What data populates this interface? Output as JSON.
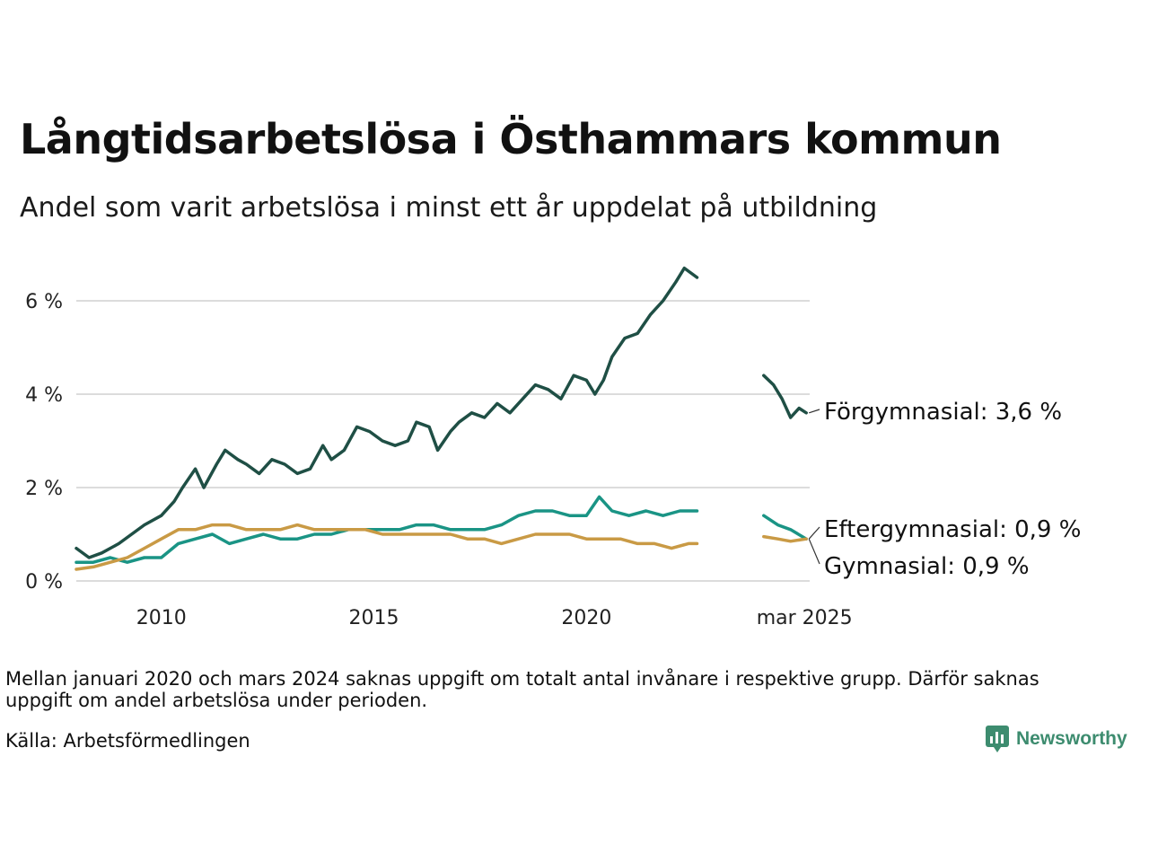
{
  "title": "Långtidsarbetslösa i Östhammars kommun",
  "subtitle": "Andel som varit arbetslösa i minst ett år uppdelat på utbildning",
  "note": "Mellan januari 2020 och mars 2024 saknas uppgift om totalt antal invånare i respektive grupp. Därför saknas uppgift om andel arbetslösa under perioden.",
  "source": "Källa: Arbetsförmedlingen",
  "logo": {
    "text": "Newsworthy"
  },
  "chart_data": {
    "type": "line",
    "title": "Långtidsarbetslösa i Östhammars kommun",
    "xlabel": "",
    "ylabel": "",
    "ylim": [
      0,
      7
    ],
    "yticks": [
      0,
      2,
      4,
      6
    ],
    "ytick_labels": [
      "0 %",
      "2 %",
      "4 %",
      "6 %"
    ],
    "xticks": [
      2010,
      2015,
      2020,
      2025.17
    ],
    "xtick_labels": [
      "2010",
      "2015",
      "2020",
      "mar 2025"
    ],
    "grid": true,
    "legend": "direct labels at line ends (right)",
    "gap": [
      "2020-01",
      "2024-03"
    ],
    "series": [
      {
        "name": "Förgymnasial",
        "end_label": "Förgymnasial: 3,6 %",
        "color": "#1f4f45",
        "points": [
          [
            2008.0,
            0.7
          ],
          [
            2008.3,
            0.5
          ],
          [
            2008.6,
            0.6
          ],
          [
            2009.0,
            0.8
          ],
          [
            2009.3,
            1.0
          ],
          [
            2009.6,
            1.2
          ],
          [
            2010.0,
            1.4
          ],
          [
            2010.3,
            1.7
          ],
          [
            2010.5,
            2.0
          ],
          [
            2010.8,
            2.4
          ],
          [
            2011.0,
            2.0
          ],
          [
            2011.3,
            2.5
          ],
          [
            2011.5,
            2.8
          ],
          [
            2011.8,
            2.6
          ],
          [
            2012.0,
            2.5
          ],
          [
            2012.3,
            2.3
          ],
          [
            2012.6,
            2.6
          ],
          [
            2012.9,
            2.5
          ],
          [
            2013.2,
            2.3
          ],
          [
            2013.5,
            2.4
          ],
          [
            2013.8,
            2.9
          ],
          [
            2014.0,
            2.6
          ],
          [
            2014.3,
            2.8
          ],
          [
            2014.6,
            3.3
          ],
          [
            2014.9,
            3.2
          ],
          [
            2015.2,
            3.0
          ],
          [
            2015.5,
            2.9
          ],
          [
            2015.8,
            3.0
          ],
          [
            2016.0,
            3.4
          ],
          [
            2016.3,
            3.3
          ],
          [
            2016.5,
            2.8
          ],
          [
            2016.8,
            3.2
          ],
          [
            2017.0,
            3.4
          ],
          [
            2017.3,
            3.6
          ],
          [
            2017.6,
            3.5
          ],
          [
            2017.9,
            3.8
          ],
          [
            2018.2,
            3.6
          ],
          [
            2018.5,
            3.9
          ],
          [
            2018.8,
            4.2
          ],
          [
            2019.1,
            4.1
          ],
          [
            2019.4,
            3.9
          ],
          [
            2019.7,
            4.4
          ],
          [
            2020.0,
            4.3
          ],
          [
            2020.2,
            4.0
          ],
          [
            2020.4,
            4.3
          ],
          [
            2020.6,
            4.8
          ],
          [
            2020.9,
            5.2
          ],
          [
            2021.2,
            5.3
          ],
          [
            2021.5,
            5.7
          ],
          [
            2021.8,
            6.0
          ],
          [
            2022.1,
            6.4
          ],
          [
            2022.3,
            6.7
          ],
          [
            2022.6,
            6.5
          ]
        ],
        "points_after_gap": [
          [
            2024.17,
            4.4
          ],
          [
            2024.4,
            4.2
          ],
          [
            2024.6,
            3.9
          ],
          [
            2024.8,
            3.5
          ],
          [
            2025.0,
            3.7
          ],
          [
            2025.17,
            3.6
          ]
        ]
      },
      {
        "name": "Eftergymnasial",
        "end_label": "Eftergymnasial: 0,9 %",
        "color": "#1a9485",
        "points": [
          [
            2008.0,
            0.4
          ],
          [
            2008.4,
            0.4
          ],
          [
            2008.8,
            0.5
          ],
          [
            2009.2,
            0.4
          ],
          [
            2009.6,
            0.5
          ],
          [
            2010.0,
            0.5
          ],
          [
            2010.4,
            0.8
          ],
          [
            2010.8,
            0.9
          ],
          [
            2011.2,
            1.0
          ],
          [
            2011.6,
            0.8
          ],
          [
            2012.0,
            0.9
          ],
          [
            2012.4,
            1.0
          ],
          [
            2012.8,
            0.9
          ],
          [
            2013.2,
            0.9
          ],
          [
            2013.6,
            1.0
          ],
          [
            2014.0,
            1.0
          ],
          [
            2014.4,
            1.1
          ],
          [
            2014.8,
            1.1
          ],
          [
            2015.2,
            1.1
          ],
          [
            2015.6,
            1.1
          ],
          [
            2016.0,
            1.2
          ],
          [
            2016.4,
            1.2
          ],
          [
            2016.8,
            1.1
          ],
          [
            2017.2,
            1.1
          ],
          [
            2017.6,
            1.1
          ],
          [
            2018.0,
            1.2
          ],
          [
            2018.4,
            1.4
          ],
          [
            2018.8,
            1.5
          ],
          [
            2019.2,
            1.5
          ],
          [
            2019.6,
            1.4
          ],
          [
            2020.0,
            1.4
          ],
          [
            2020.3,
            1.8
          ],
          [
            2020.6,
            1.5
          ],
          [
            2021.0,
            1.4
          ],
          [
            2021.4,
            1.5
          ],
          [
            2021.8,
            1.4
          ],
          [
            2022.2,
            1.5
          ],
          [
            2022.6,
            1.5
          ]
        ],
        "points_after_gap": [
          [
            2024.17,
            1.4
          ],
          [
            2024.5,
            1.2
          ],
          [
            2024.8,
            1.1
          ],
          [
            2025.17,
            0.9
          ]
        ]
      },
      {
        "name": "Gymnasial",
        "end_label": "Gymnasial: 0,9 %",
        "color": "#c99a45",
        "points": [
          [
            2008.0,
            0.25
          ],
          [
            2008.4,
            0.3
          ],
          [
            2008.8,
            0.4
          ],
          [
            2009.2,
            0.5
          ],
          [
            2009.6,
            0.7
          ],
          [
            2010.0,
            0.9
          ],
          [
            2010.4,
            1.1
          ],
          [
            2010.8,
            1.1
          ],
          [
            2011.2,
            1.2
          ],
          [
            2011.6,
            1.2
          ],
          [
            2012.0,
            1.1
          ],
          [
            2012.4,
            1.1
          ],
          [
            2012.8,
            1.1
          ],
          [
            2013.2,
            1.2
          ],
          [
            2013.6,
            1.1
          ],
          [
            2014.0,
            1.1
          ],
          [
            2014.4,
            1.1
          ],
          [
            2014.8,
            1.1
          ],
          [
            2015.2,
            1.0
          ],
          [
            2015.6,
            1.0
          ],
          [
            2016.0,
            1.0
          ],
          [
            2016.4,
            1.0
          ],
          [
            2016.8,
            1.0
          ],
          [
            2017.2,
            0.9
          ],
          [
            2017.6,
            0.9
          ],
          [
            2018.0,
            0.8
          ],
          [
            2018.4,
            0.9
          ],
          [
            2018.8,
            1.0
          ],
          [
            2019.2,
            1.0
          ],
          [
            2019.6,
            1.0
          ],
          [
            2020.0,
            0.9
          ],
          [
            2020.4,
            0.9
          ],
          [
            2020.8,
            0.9
          ],
          [
            2021.2,
            0.8
          ],
          [
            2021.6,
            0.8
          ],
          [
            2022.0,
            0.7
          ],
          [
            2022.4,
            0.8
          ],
          [
            2022.6,
            0.8
          ]
        ],
        "points_after_gap": [
          [
            2024.17,
            0.95
          ],
          [
            2024.5,
            0.9
          ],
          [
            2024.8,
            0.85
          ],
          [
            2025.17,
            0.9
          ]
        ]
      }
    ]
  }
}
